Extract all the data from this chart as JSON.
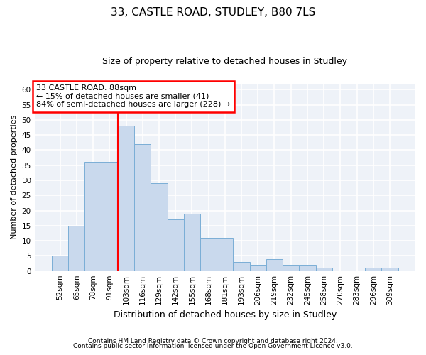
{
  "title1": "33, CASTLE ROAD, STUDLEY, B80 7LS",
  "title2": "Size of property relative to detached houses in Studley",
  "xlabel": "Distribution of detached houses by size in Studley",
  "ylabel": "Number of detached properties",
  "categories": [
    "52sqm",
    "65sqm",
    "78sqm",
    "91sqm",
    "103sqm",
    "116sqm",
    "129sqm",
    "142sqm",
    "155sqm",
    "168sqm",
    "181sqm",
    "193sqm",
    "206sqm",
    "219sqm",
    "232sqm",
    "245sqm",
    "258sqm",
    "270sqm",
    "283sqm",
    "296sqm",
    "309sqm"
  ],
  "values": [
    5,
    15,
    36,
    36,
    48,
    42,
    29,
    17,
    19,
    11,
    11,
    3,
    2,
    4,
    2,
    2,
    1,
    0,
    0,
    1,
    1
  ],
  "bar_color": "#c9d9ed",
  "bar_edge_color": "#7aaed6",
  "vline_color": "red",
  "vline_x_index": 3.5,
  "annotation_text": "33 CASTLE ROAD: 88sqm\n← 15% of detached houses are smaller (41)\n84% of semi-detached houses are larger (228) →",
  "annotation_box_color": "white",
  "annotation_box_edge_color": "red",
  "ylim": [
    0,
    62
  ],
  "yticks": [
    0,
    5,
    10,
    15,
    20,
    25,
    30,
    35,
    40,
    45,
    50,
    55,
    60
  ],
  "footnote1": "Contains HM Land Registry data © Crown copyright and database right 2024.",
  "footnote2": "Contains public sector information licensed under the Open Government Licence v3.0.",
  "bg_color": "#eef2f8",
  "grid_color": "white",
  "title1_fontsize": 11,
  "title2_fontsize": 9,
  "xlabel_fontsize": 9,
  "ylabel_fontsize": 8,
  "tick_fontsize": 7.5,
  "annot_fontsize": 8
}
